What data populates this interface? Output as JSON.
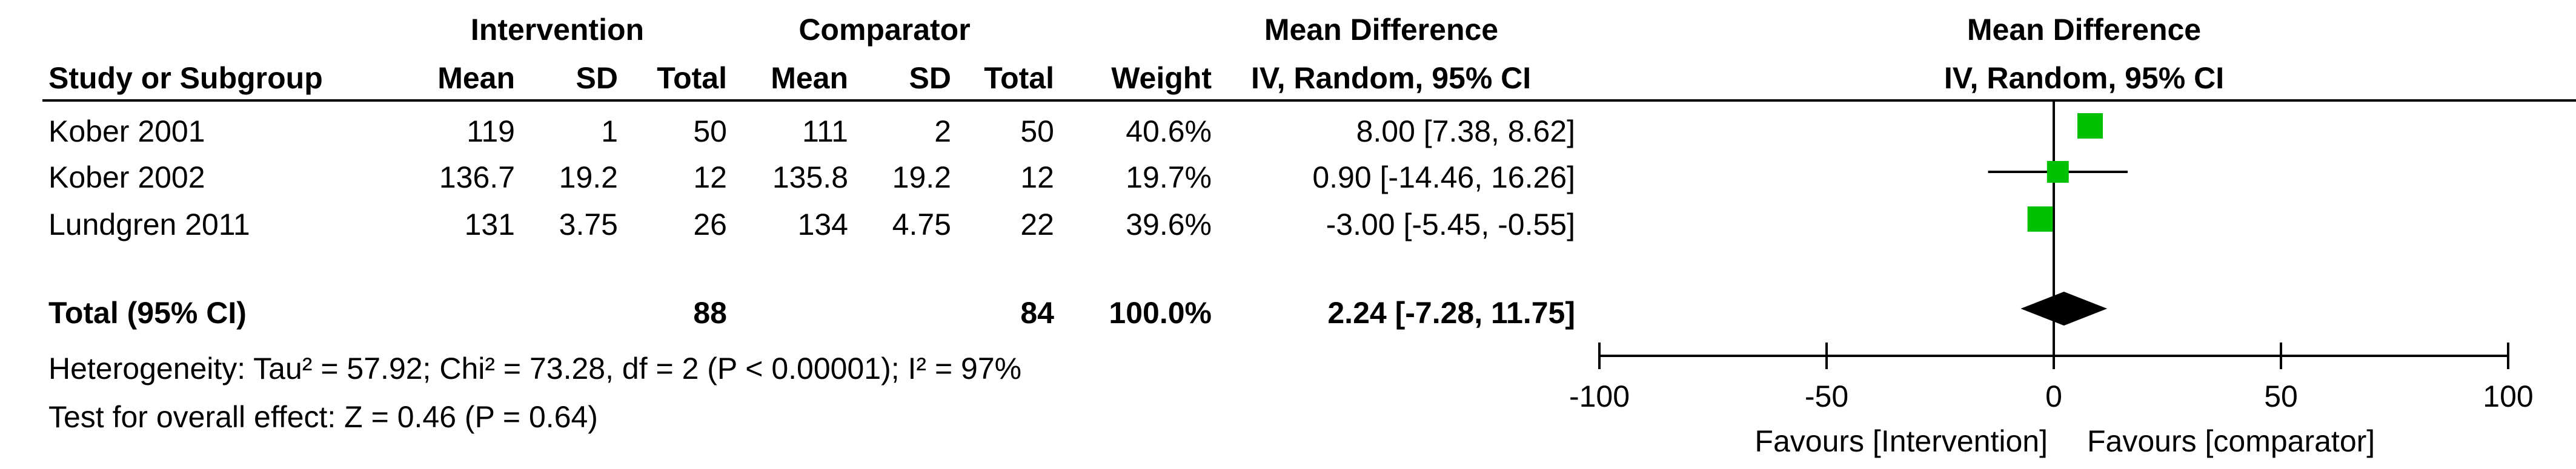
{
  "header": {
    "group1": "Intervention",
    "group2": "Comparator",
    "effect_title": "Mean Difference",
    "study_col": "Study or Subgroup",
    "mean": "Mean",
    "sd": "SD",
    "total": "Total",
    "weight": "Weight",
    "method": "IV, Random, 95% CI",
    "plot_title": "Mean Difference",
    "plot_method": "IV, Random, 95% CI"
  },
  "studies": [
    {
      "name": "Kober 2001",
      "mean1": "119",
      "sd1": "1",
      "total1": "50",
      "mean2": "111",
      "sd2": "2",
      "total2": "50",
      "weight": "40.6%",
      "ci_text": "8.00 [7.38, 8.62]"
    },
    {
      "name": "Kober 2002",
      "mean1": "136.7",
      "sd1": "19.2",
      "total1": "12",
      "mean2": "135.8",
      "sd2": "19.2",
      "total2": "12",
      "weight": "19.7%",
      "ci_text": "0.90 [-14.46, 16.26]"
    },
    {
      "name": "Lundgren 2011",
      "mean1": "131",
      "sd1": "3.75",
      "total1": "26",
      "mean2": "134",
      "sd2": "4.75",
      "total2": "22",
      "weight": "39.6%",
      "ci_text": "-3.00 [-5.45, -0.55]"
    }
  ],
  "total": {
    "label": "Total (95% CI)",
    "total1": "88",
    "total2": "84",
    "weight": "100.0%",
    "ci_text": "2.24 [-7.28, 11.75]"
  },
  "heterogeneity": "Heterogeneity: Tau² = 57.92; Chi² = 73.28, df = 2 (P < 0.00001); I² = 97%",
  "overall_effect": "Test for overall effect: Z = 0.46 (P = 0.64)",
  "axis": {
    "ticks": [
      "-100",
      "-50",
      "0",
      "50",
      "100"
    ],
    "favours_left": "Favours [Intervention]",
    "favours_right": "Favours [comparator]"
  },
  "colors": {
    "marker": "#00c000",
    "diamond": "#000000"
  },
  "chart_data": {
    "type": "forest",
    "xlim": [
      -100,
      100
    ],
    "ticks": [
      -100,
      -50,
      0,
      50,
      100
    ],
    "studies": [
      {
        "name": "Kober 2001",
        "estimate": 8.0,
        "lower": 7.38,
        "upper": 8.62,
        "weight": 40.6
      },
      {
        "name": "Kober 2002",
        "estimate": 0.9,
        "lower": -14.46,
        "upper": 16.26,
        "weight": 19.7
      },
      {
        "name": "Lundgren 2011",
        "estimate": -3.0,
        "lower": -5.45,
        "upper": -0.55,
        "weight": 39.6
      }
    ],
    "pooled": {
      "estimate": 2.24,
      "lower": -7.28,
      "upper": 11.75
    }
  }
}
